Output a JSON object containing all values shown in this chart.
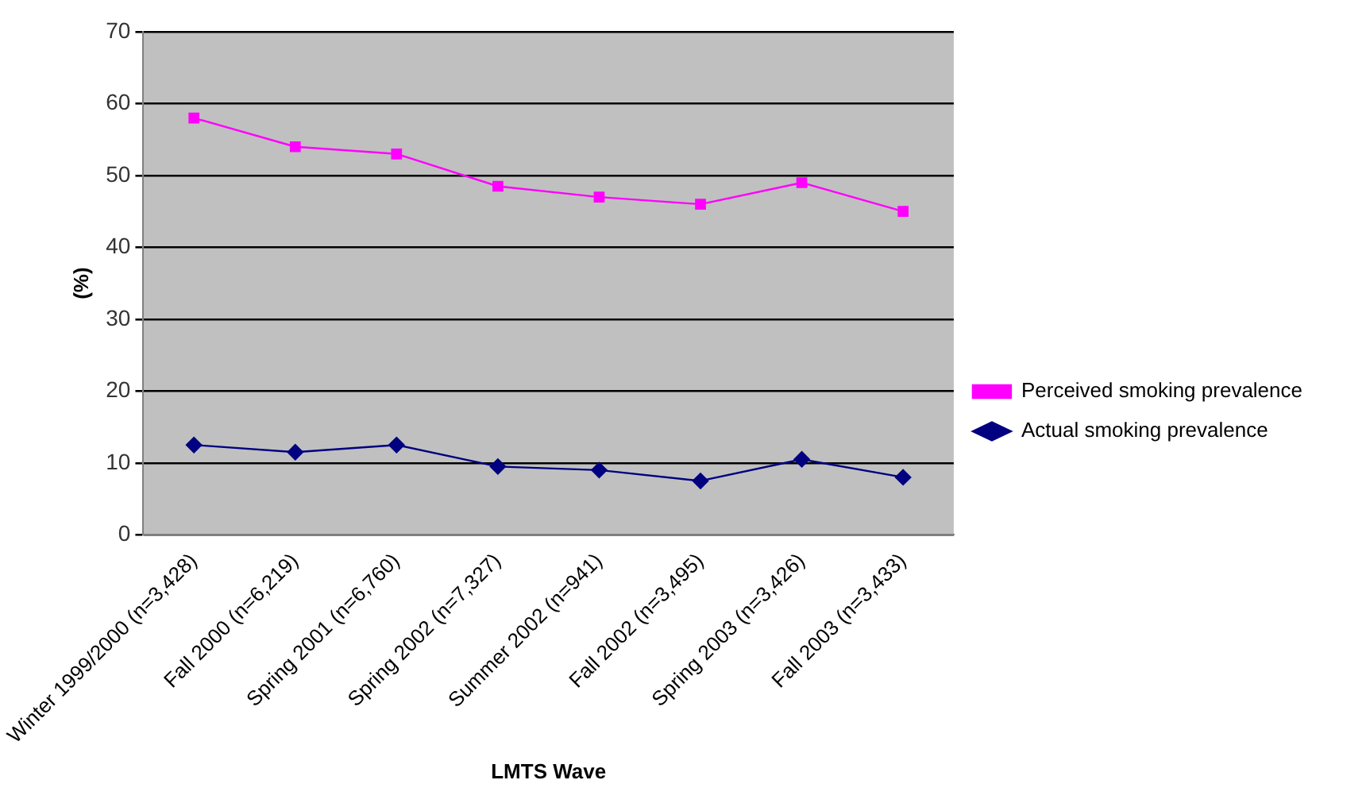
{
  "chart_data": {
    "type": "line",
    "xlabel": "LMTS Wave",
    "ylabel": "(%)",
    "categories": [
      "Winter 1999/2000 (n=3,428)",
      "Fall 2000 (n=6,219)",
      "Spring 2001 (n=6,760)",
      "Spring 2002 (n=7,327)",
      "Summer 2002 (n=941)",
      "Fall 2002 (n=3,495)",
      "Spring 2003 (n=3,426)",
      "Fall 2003 (n=3,433)"
    ],
    "series": [
      {
        "name": "Perceived smoking prevalence",
        "color": "#ff00ff",
        "marker": "square",
        "values": [
          58,
          54,
          53,
          48.5,
          47,
          46,
          49,
          45
        ]
      },
      {
        "name": "Actual smoking prevalence",
        "color": "#000080",
        "marker": "diamond",
        "values": [
          12.5,
          11.5,
          12.5,
          9.5,
          9,
          7.5,
          10.5,
          8
        ]
      }
    ],
    "ylim": [
      0,
      70
    ],
    "yticks": [
      0,
      10,
      20,
      30,
      40,
      50,
      60,
      70
    ],
    "grid": "y",
    "legend": "right",
    "line_style": "solid"
  }
}
